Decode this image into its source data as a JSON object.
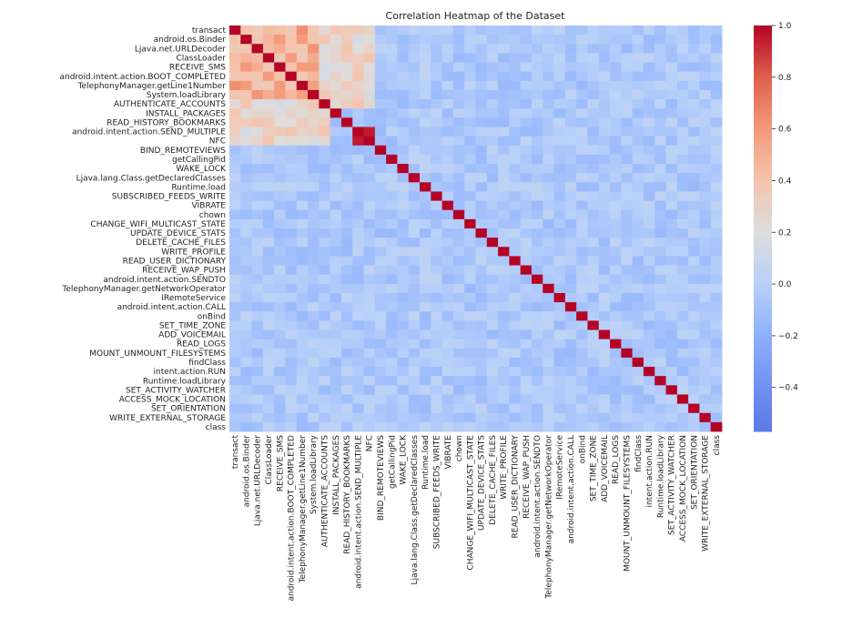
{
  "chart_data": {
    "type": "heatmap",
    "title": "Correlation Heatmap of the Dataset",
    "row_labels": [
      "transact",
      "android.os.Binder",
      "Ljava.net.URLDecoder",
      "ClassLoader",
      "RECEIVE_SMS",
      "android.intent.action.BOOT_COMPLETED",
      "TelephonyManager.getLine1Number",
      "System.loadLibrary",
      "AUTHENTICATE_ACCOUNTS",
      "INSTALL_PACKAGES",
      "READ_HISTORY_BOOKMARKS",
      "android.intent.action.SEND_MULTIPLE",
      "NFC",
      "BIND_REMOTEVIEWS",
      "getCallingPid",
      "WAKE_LOCK",
      "Ljava.lang.Class.getDeclaredClasses",
      "Runtime.load",
      "SUBSCRIBED_FEEDS_WRITE",
      "VIBRATE",
      "chown",
      "CHANGE_WIFI_MULTICAST_STATE",
      "UPDATE_DEVICE_STATS",
      "DELETE_CACHE_FILES",
      "WRITE_PROFILE",
      "READ_USER_DICTIONARY",
      "RECEIVE_WAP_PUSH",
      "android.intent.action.SENDTO",
      "TelephonyManager.getNetworkOperator",
      "IRemoteService",
      "android.intent.action.CALL",
      "onBind",
      "SET_TIME_ZONE",
      "ADD_VOICEMAIL",
      "READ_LOGS",
      "MOUNT_UNMOUNT_FILESYSTEMS",
      "findClass",
      "intent.action.RUN",
      "Runtime.loadLibrary",
      "SET_ACTIVITY_WATCHER",
      "ACCESS_MOCK_LOCATION",
      "SET_ORIENTATION",
      "WRITE_EXTERNAL_STORAGE",
      "class"
    ],
    "col_labels": [
      "transact",
      "android.os.Binder",
      "Ljava.net.URLDecoder",
      "ClassLoader",
      "RECEIVE_SMS",
      "android.intent.action.BOOT_COMPLETED",
      "TelephonyManager.getLine1Number",
      "System.loadLibrary",
      "AUTHENTICATE_ACCOUNTS",
      "INSTALL_PACKAGES",
      "READ_HISTORY_BOOKMARKS",
      "android.intent.action.SEND_MULTIPLE",
      "NFC",
      "BIND_REMOTEVIEWS",
      "getCallingPid",
      "WAKE_LOCK",
      "Ljava.lang.Class.getDeclaredClasses",
      "Runtime.load",
      "SUBSCRIBED_FEEDS_WRITE",
      "VIBRATE",
      "chown",
      "CHANGE_WIFI_MULTICAST_STATE",
      "UPDATE_DEVICE_STATS",
      "DELETE_CACHE_FILES",
      "WRITE_PROFILE",
      "READ_USER_DICTIONARY",
      "RECEIVE_WAP_PUSH",
      "android.intent.action.SENDTO",
      "TelephonyManager.getNetworkOperator",
      "IRemoteService",
      "android.intent.action.CALL",
      "onBind",
      "SET_TIME_ZONE",
      "ADD_VOICEMAIL",
      "READ_LOGS",
      "MOUNT_UNMOUNT_FILESYSTEMS",
      "findClass",
      "intent.action.RUN",
      "Runtime.loadLibrary",
      "SET_ACTIVITY_WATCHER",
      "ACCESS_MOCK_LOCATION",
      "SET_ORIENTATION",
      "WRITE_EXTERNAL_STORAGE",
      "class"
    ],
    "diagonal_value": 1.0,
    "colorbar": {
      "ticks": [
        1.0,
        0.8,
        0.6,
        0.4,
        0.2,
        0.0,
        -0.2,
        -0.4
      ],
      "tick_labels": [
        "1.0",
        "0.8",
        "0.6",
        "0.4",
        "0.2",
        "0.0",
        "−0.2",
        "−0.4"
      ],
      "vmin": -0.57,
      "vmax": 1.0,
      "colormap": "coolwarm"
    },
    "notable_clusters": [
      {
        "rows": [
          "transact",
          "android.os.Binder",
          "Ljava.net.URLDecoder",
          "ClassLoader",
          "RECEIVE_SMS",
          "android.intent.action.BOOT_COMPLETED",
          "TelephonyManager.getLine1Number",
          "System.loadLibrary"
        ],
        "approx_corr": 0.5
      },
      {
        "rows": [
          "android.intent.action.SEND_MULTIPLE",
          "NFC"
        ],
        "approx_corr": 0.95
      }
    ]
  }
}
